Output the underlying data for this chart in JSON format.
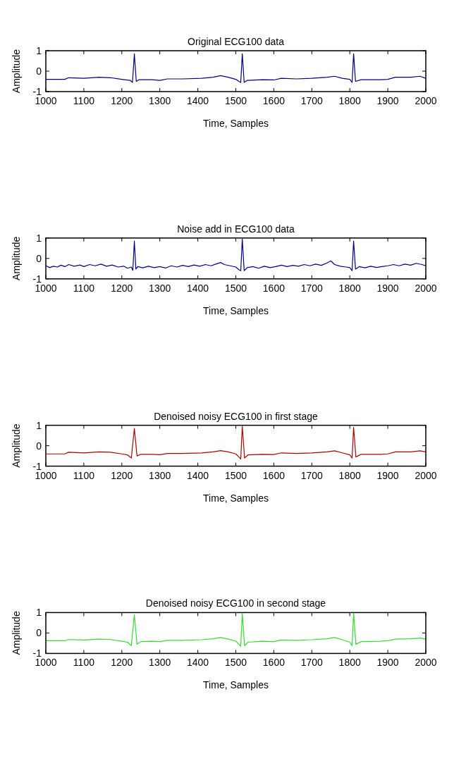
{
  "chart_data": [
    {
      "type": "line",
      "title": "Original ECG100 data",
      "xlabel": "Time, Samples",
      "ylabel": "Amplitude",
      "xlim": [
        1000,
        2000
      ],
      "xticks": [
        1000,
        1100,
        1200,
        1300,
        1400,
        1500,
        1600,
        1700,
        1800,
        1900,
        2000
      ],
      "ylim": [
        -1,
        1
      ],
      "yticks": [
        -1,
        0,
        1
      ],
      "series": [
        {
          "color": "#00007f",
          "x": [
            1000,
            1050,
            1060,
            1100,
            1140,
            1170,
            1200,
            1222,
            1228,
            1233,
            1238,
            1245,
            1280,
            1300,
            1320,
            1360,
            1410,
            1440,
            1460,
            1480,
            1500,
            1508,
            1513,
            1517,
            1522,
            1530,
            1570,
            1600,
            1620,
            1660,
            1700,
            1740,
            1760,
            1780,
            1800,
            1806,
            1810,
            1815,
            1830,
            1880,
            1900,
            1920,
            1960,
            1985,
            2000
          ],
          "values": [
            -0.4,
            -0.4,
            -0.32,
            -0.35,
            -0.3,
            -0.32,
            -0.4,
            -0.45,
            -0.55,
            0.85,
            -0.5,
            -0.42,
            -0.42,
            -0.45,
            -0.38,
            -0.38,
            -0.35,
            -0.3,
            -0.22,
            -0.3,
            -0.4,
            -0.5,
            -0.55,
            0.85,
            -0.55,
            -0.45,
            -0.42,
            -0.43,
            -0.35,
            -0.38,
            -0.35,
            -0.3,
            -0.25,
            -0.35,
            -0.4,
            -0.55,
            0.85,
            -0.5,
            -0.42,
            -0.42,
            -0.4,
            -0.3,
            -0.3,
            -0.25,
            -0.35
          ]
        }
      ]
    },
    {
      "type": "line",
      "title": "Noise add in ECG100 data",
      "xlabel": "Time, Samples",
      "ylabel": "Amplitude",
      "xlim": [
        1000,
        2000
      ],
      "xticks": [
        1000,
        1100,
        1200,
        1300,
        1400,
        1500,
        1600,
        1700,
        1800,
        1900,
        2000
      ],
      "ylim": [
        -1,
        1
      ],
      "yticks": [
        -1,
        0,
        1
      ],
      "series": [
        {
          "color": "#00008b",
          "x": [
            1000,
            1010,
            1020,
            1030,
            1040,
            1050,
            1060,
            1075,
            1090,
            1100,
            1115,
            1130,
            1145,
            1160,
            1175,
            1190,
            1205,
            1215,
            1225,
            1229,
            1233,
            1237,
            1242,
            1255,
            1270,
            1285,
            1300,
            1315,
            1330,
            1345,
            1360,
            1375,
            1390,
            1405,
            1420,
            1435,
            1450,
            1460,
            1470,
            1485,
            1500,
            1508,
            1513,
            1517,
            1522,
            1530,
            1545,
            1560,
            1575,
            1590,
            1605,
            1620,
            1635,
            1650,
            1665,
            1680,
            1695,
            1710,
            1725,
            1740,
            1750,
            1760,
            1775,
            1790,
            1800,
            1806,
            1810,
            1815,
            1825,
            1840,
            1855,
            1870,
            1885,
            1900,
            1915,
            1930,
            1945,
            1960,
            1975,
            1990,
            2000
          ],
          "values": [
            -0.35,
            -0.45,
            -0.38,
            -0.42,
            -0.33,
            -0.4,
            -0.3,
            -0.38,
            -0.32,
            -0.4,
            -0.3,
            -0.36,
            -0.28,
            -0.38,
            -0.32,
            -0.42,
            -0.38,
            -0.48,
            -0.42,
            -0.58,
            0.85,
            -0.52,
            -0.4,
            -0.46,
            -0.38,
            -0.45,
            -0.4,
            -0.47,
            -0.36,
            -0.42,
            -0.34,
            -0.4,
            -0.32,
            -0.38,
            -0.3,
            -0.36,
            -0.26,
            -0.2,
            -0.3,
            -0.36,
            -0.42,
            -0.55,
            -0.6,
            0.95,
            -0.6,
            -0.45,
            -0.4,
            -0.48,
            -0.38,
            -0.45,
            -0.4,
            -0.33,
            -0.4,
            -0.34,
            -0.38,
            -0.3,
            -0.36,
            -0.28,
            -0.34,
            -0.22,
            -0.12,
            -0.3,
            -0.38,
            -0.42,
            -0.45,
            -0.6,
            0.85,
            -0.52,
            -0.4,
            -0.46,
            -0.38,
            -0.44,
            -0.4,
            -0.36,
            -0.3,
            -0.36,
            -0.28,
            -0.33,
            -0.24,
            -0.3,
            -0.36
          ]
        }
      ]
    },
    {
      "type": "line",
      "title": "Denoised noisy ECG100 in first stage",
      "xlabel": "Time, Samples",
      "ylabel": "Amplitude",
      "xlim": [
        1000,
        2000
      ],
      "xticks": [
        1000,
        1100,
        1200,
        1300,
        1400,
        1500,
        1600,
        1700,
        1800,
        1900,
        2000
      ],
      "ylim": [
        -1,
        1
      ],
      "yticks": [
        -1,
        0,
        1
      ],
      "series": [
        {
          "color": "#b00000",
          "x": [
            1000,
            1050,
            1060,
            1100,
            1140,
            1170,
            1200,
            1215,
            1225,
            1233,
            1240,
            1250,
            1280,
            1300,
            1320,
            1360,
            1410,
            1440,
            1460,
            1480,
            1500,
            1508,
            1513,
            1517,
            1523,
            1532,
            1570,
            1600,
            1620,
            1660,
            1700,
            1740,
            1760,
            1780,
            1800,
            1806,
            1810,
            1816,
            1830,
            1880,
            1900,
            1920,
            1960,
            1985,
            2000
          ],
          "values": [
            -0.4,
            -0.4,
            -0.32,
            -0.35,
            -0.3,
            -0.32,
            -0.4,
            -0.45,
            -0.6,
            0.85,
            -0.5,
            -0.42,
            -0.42,
            -0.44,
            -0.38,
            -0.38,
            -0.35,
            -0.3,
            -0.24,
            -0.3,
            -0.4,
            -0.55,
            -0.65,
            0.95,
            -0.6,
            -0.45,
            -0.42,
            -0.43,
            -0.35,
            -0.38,
            -0.35,
            -0.3,
            -0.25,
            -0.35,
            -0.45,
            -0.6,
            0.9,
            -0.55,
            -0.42,
            -0.42,
            -0.4,
            -0.3,
            -0.3,
            -0.25,
            -0.3
          ]
        }
      ]
    },
    {
      "type": "line",
      "title": "Denoised noisy ECG100 in second stage",
      "xlabel": "Time, Samples",
      "ylabel": "Amplitude",
      "xlim": [
        1000,
        2000
      ],
      "xticks": [
        1000,
        1100,
        1200,
        1300,
        1400,
        1500,
        1600,
        1700,
        1800,
        1900,
        2000
      ],
      "ylim": [
        -1,
        1
      ],
      "yticks": [
        -1,
        0,
        1
      ],
      "series": [
        {
          "color": "#33dd33",
          "x": [
            1000,
            1050,
            1060,
            1100,
            1140,
            1170,
            1200,
            1215,
            1225,
            1233,
            1240,
            1250,
            1280,
            1300,
            1320,
            1360,
            1410,
            1440,
            1460,
            1480,
            1500,
            1508,
            1513,
            1517,
            1523,
            1532,
            1570,
            1600,
            1620,
            1660,
            1700,
            1740,
            1760,
            1780,
            1800,
            1806,
            1810,
            1816,
            1830,
            1880,
            1900,
            1920,
            1960,
            1985,
            2000
          ],
          "values": [
            -0.38,
            -0.38,
            -0.32,
            -0.34,
            -0.3,
            -0.32,
            -0.4,
            -0.45,
            -0.62,
            0.9,
            -0.55,
            -0.42,
            -0.4,
            -0.42,
            -0.36,
            -0.36,
            -0.33,
            -0.28,
            -0.22,
            -0.3,
            -0.4,
            -0.55,
            -0.65,
            0.95,
            -0.62,
            -0.45,
            -0.4,
            -0.42,
            -0.34,
            -0.36,
            -0.33,
            -0.28,
            -0.22,
            -0.33,
            -0.45,
            -0.62,
            0.95,
            -0.55,
            -0.42,
            -0.4,
            -0.38,
            -0.3,
            -0.28,
            -0.25,
            -0.3
          ]
        }
      ]
    }
  ]
}
